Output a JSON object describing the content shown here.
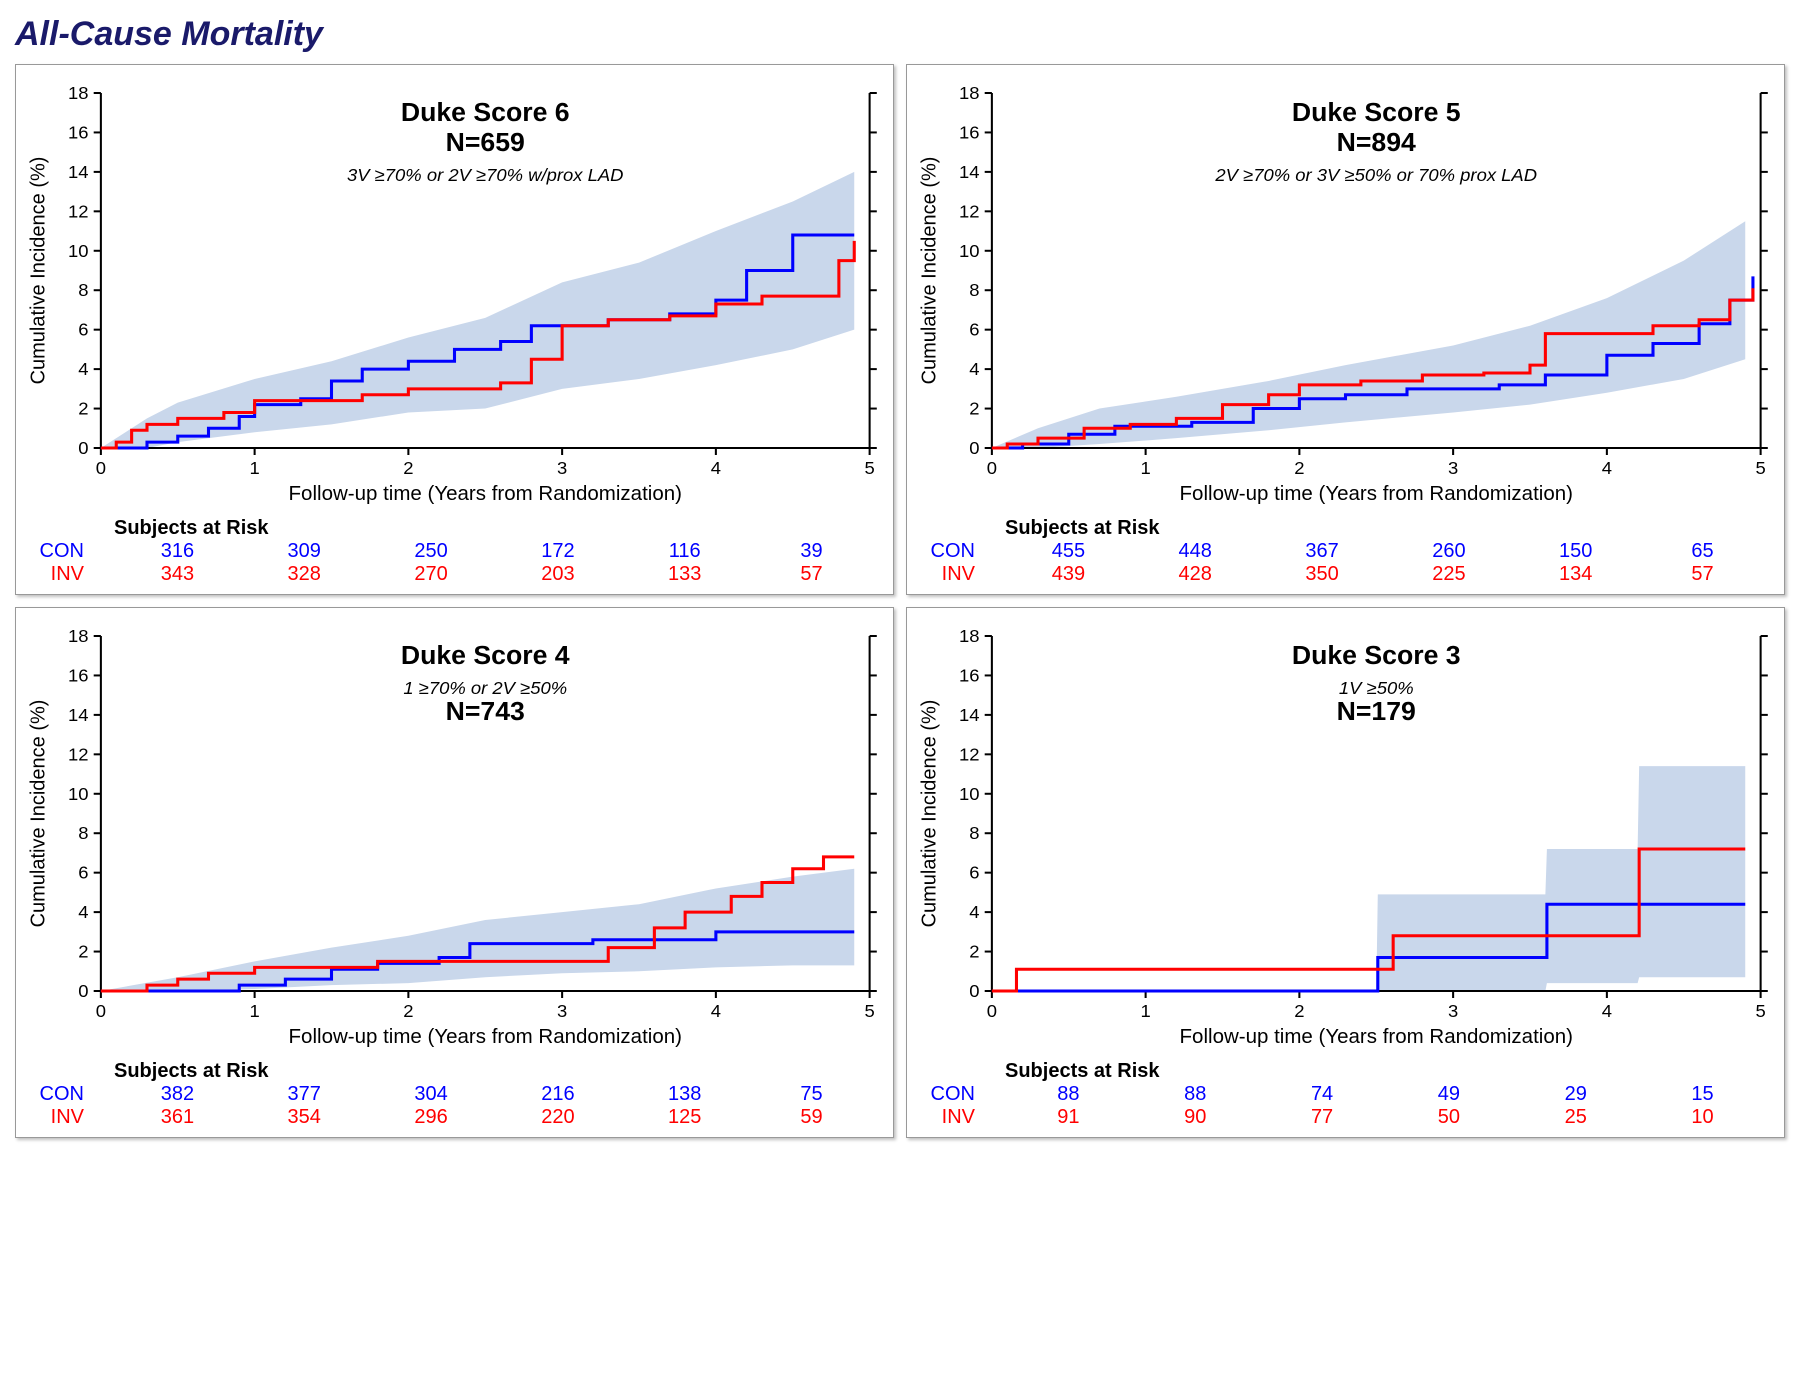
{
  "title": "All-Cause Mortality",
  "colors": {
    "con": "#0000ff",
    "inv": "#ff0000",
    "axis": "#000000",
    "ci_fill": "#c9d7eb",
    "text": "#000000"
  },
  "axis": {
    "xlabel": "Follow-up time (Years from Randomization)",
    "ylabel": "Cumulative Incidence (%)",
    "xmin": 0,
    "xmax": 5,
    "xtick_step": 1,
    "ymin": 0,
    "ymax": 18,
    "ytick_step": 2,
    "label_fontsize": 20,
    "tick_fontsize": 18
  },
  "risk_header": "Subjects at Risk",
  "groups": [
    "CON",
    "INV"
  ],
  "panels": [
    {
      "id": "p6",
      "title": "Duke Score 6",
      "n": "N=659",
      "sub": "3V ≥70% or 2V ≥70% w/prox LAD",
      "ci_band": [
        {
          "x": 0.0,
          "lo": 0,
          "hi": 0
        },
        {
          "x": 0.3,
          "lo": 0,
          "hi": 1.5
        },
        {
          "x": 0.5,
          "lo": 0.3,
          "hi": 2.3
        },
        {
          "x": 1.0,
          "lo": 0.8,
          "hi": 3.5
        },
        {
          "x": 1.5,
          "lo": 1.2,
          "hi": 4.4
        },
        {
          "x": 2.0,
          "lo": 1.8,
          "hi": 5.6
        },
        {
          "x": 2.5,
          "lo": 2.0,
          "hi": 6.6
        },
        {
          "x": 3.0,
          "lo": 3.0,
          "hi": 8.4
        },
        {
          "x": 3.5,
          "lo": 3.5,
          "hi": 9.4
        },
        {
          "x": 4.0,
          "lo": 4.2,
          "hi": 11.0
        },
        {
          "x": 4.5,
          "lo": 5.0,
          "hi": 12.5
        },
        {
          "x": 4.9,
          "lo": 6.0,
          "hi": 14.0
        }
      ],
      "series": {
        "CON": [
          {
            "x": 0.0,
            "y": 0
          },
          {
            "x": 0.3,
            "y": 0.3
          },
          {
            "x": 0.5,
            "y": 0.6
          },
          {
            "x": 0.7,
            "y": 1.0
          },
          {
            "x": 0.9,
            "y": 1.6
          },
          {
            "x": 1.0,
            "y": 2.2
          },
          {
            "x": 1.3,
            "y": 2.5
          },
          {
            "x": 1.5,
            "y": 3.4
          },
          {
            "x": 1.7,
            "y": 4.0
          },
          {
            "x": 2.0,
            "y": 4.4
          },
          {
            "x": 2.3,
            "y": 5.0
          },
          {
            "x": 2.6,
            "y": 5.4
          },
          {
            "x": 2.8,
            "y": 6.2
          },
          {
            "x": 3.0,
            "y": 6.2
          },
          {
            "x": 3.3,
            "y": 6.5
          },
          {
            "x": 3.7,
            "y": 6.8
          },
          {
            "x": 4.0,
            "y": 7.5
          },
          {
            "x": 4.2,
            "y": 9.0
          },
          {
            "x": 4.5,
            "y": 10.8
          },
          {
            "x": 4.7,
            "y": 10.8
          },
          {
            "x": 4.9,
            "y": 10.8
          }
        ],
        "INV": [
          {
            "x": 0.0,
            "y": 0
          },
          {
            "x": 0.1,
            "y": 0.3
          },
          {
            "x": 0.2,
            "y": 0.9
          },
          {
            "x": 0.3,
            "y": 1.2
          },
          {
            "x": 0.5,
            "y": 1.5
          },
          {
            "x": 0.8,
            "y": 1.8
          },
          {
            "x": 1.0,
            "y": 2.4
          },
          {
            "x": 1.3,
            "y": 2.4
          },
          {
            "x": 1.7,
            "y": 2.7
          },
          {
            "x": 2.0,
            "y": 3.0
          },
          {
            "x": 2.3,
            "y": 3.0
          },
          {
            "x": 2.6,
            "y": 3.3
          },
          {
            "x": 2.8,
            "y": 4.5
          },
          {
            "x": 3.0,
            "y": 6.2
          },
          {
            "x": 3.3,
            "y": 6.5
          },
          {
            "x": 3.7,
            "y": 6.7
          },
          {
            "x": 4.0,
            "y": 7.3
          },
          {
            "x": 4.3,
            "y": 7.7
          },
          {
            "x": 4.6,
            "y": 7.7
          },
          {
            "x": 4.8,
            "y": 9.5
          },
          {
            "x": 4.9,
            "y": 10.5
          }
        ]
      },
      "risk": {
        "CON": [
          316,
          309,
          250,
          172,
          116,
          39
        ],
        "INV": [
          343,
          328,
          270,
          203,
          133,
          57
        ]
      }
    },
    {
      "id": "p5",
      "title": "Duke Score 5",
      "n": "N=894",
      "sub": "2V ≥70% or 3V ≥50% or 70% prox LAD",
      "ci_band": [
        {
          "x": 0.0,
          "lo": 0,
          "hi": 0
        },
        {
          "x": 0.3,
          "lo": 0,
          "hi": 1.0
        },
        {
          "x": 0.7,
          "lo": 0.2,
          "hi": 2.0
        },
        {
          "x": 1.2,
          "lo": 0.5,
          "hi": 2.6
        },
        {
          "x": 1.8,
          "lo": 0.9,
          "hi": 3.4
        },
        {
          "x": 2.3,
          "lo": 1.3,
          "hi": 4.2
        },
        {
          "x": 3.0,
          "lo": 1.8,
          "hi": 5.2
        },
        {
          "x": 3.5,
          "lo": 2.2,
          "hi": 6.2
        },
        {
          "x": 4.0,
          "lo": 2.8,
          "hi": 7.6
        },
        {
          "x": 4.5,
          "lo": 3.5,
          "hi": 9.5
        },
        {
          "x": 4.9,
          "lo": 4.5,
          "hi": 11.5
        }
      ],
      "series": {
        "CON": [
          {
            "x": 0.0,
            "y": 0
          },
          {
            "x": 0.2,
            "y": 0.2
          },
          {
            "x": 0.5,
            "y": 0.7
          },
          {
            "x": 0.8,
            "y": 1.1
          },
          {
            "x": 1.0,
            "y": 1.1
          },
          {
            "x": 1.3,
            "y": 1.3
          },
          {
            "x": 1.7,
            "y": 2.0
          },
          {
            "x": 2.0,
            "y": 2.5
          },
          {
            "x": 2.3,
            "y": 2.7
          },
          {
            "x": 2.7,
            "y": 3.0
          },
          {
            "x": 3.0,
            "y": 3.0
          },
          {
            "x": 3.3,
            "y": 3.2
          },
          {
            "x": 3.6,
            "y": 3.7
          },
          {
            "x": 4.0,
            "y": 4.7
          },
          {
            "x": 4.3,
            "y": 5.3
          },
          {
            "x": 4.6,
            "y": 6.3
          },
          {
            "x": 4.8,
            "y": 7.5
          },
          {
            "x": 4.95,
            "y": 8.7
          }
        ],
        "INV": [
          {
            "x": 0.0,
            "y": 0
          },
          {
            "x": 0.1,
            "y": 0.2
          },
          {
            "x": 0.3,
            "y": 0.5
          },
          {
            "x": 0.6,
            "y": 1.0
          },
          {
            "x": 0.9,
            "y": 1.2
          },
          {
            "x": 1.2,
            "y": 1.5
          },
          {
            "x": 1.5,
            "y": 2.2
          },
          {
            "x": 1.8,
            "y": 2.7
          },
          {
            "x": 2.0,
            "y": 3.2
          },
          {
            "x": 2.4,
            "y": 3.4
          },
          {
            "x": 2.8,
            "y": 3.7
          },
          {
            "x": 3.2,
            "y": 3.8
          },
          {
            "x": 3.5,
            "y": 4.2
          },
          {
            "x": 3.6,
            "y": 5.8
          },
          {
            "x": 4.0,
            "y": 5.8
          },
          {
            "x": 4.3,
            "y": 6.2
          },
          {
            "x": 4.6,
            "y": 6.5
          },
          {
            "x": 4.8,
            "y": 7.5
          },
          {
            "x": 4.95,
            "y": 8.1
          }
        ]
      },
      "risk": {
        "CON": [
          455,
          448,
          367,
          260,
          150,
          65
        ],
        "INV": [
          439,
          428,
          350,
          225,
          134,
          57
        ]
      }
    },
    {
      "id": "p4",
      "title": "Duke Score 4",
      "n": "N=743",
      "sub": "1 ≥70% or 2V ≥50%",
      "title_order": [
        "title",
        "sub",
        "n"
      ],
      "ci_band": [
        {
          "x": 0.0,
          "lo": 0,
          "hi": 0
        },
        {
          "x": 0.5,
          "lo": 0,
          "hi": 0.7
        },
        {
          "x": 1.0,
          "lo": 0.1,
          "hi": 1.5
        },
        {
          "x": 1.5,
          "lo": 0.3,
          "hi": 2.2
        },
        {
          "x": 2.0,
          "lo": 0.4,
          "hi": 2.8
        },
        {
          "x": 2.5,
          "lo": 0.7,
          "hi": 3.6
        },
        {
          "x": 3.0,
          "lo": 0.9,
          "hi": 4.0
        },
        {
          "x": 3.5,
          "lo": 1.0,
          "hi": 4.4
        },
        {
          "x": 4.0,
          "lo": 1.2,
          "hi": 5.2
        },
        {
          "x": 4.5,
          "lo": 1.3,
          "hi": 5.8
        },
        {
          "x": 4.9,
          "lo": 1.3,
          "hi": 6.2
        }
      ],
      "series": {
        "CON": [
          {
            "x": 0.0,
            "y": 0
          },
          {
            "x": 0.7,
            "y": 0
          },
          {
            "x": 0.9,
            "y": 0.3
          },
          {
            "x": 1.2,
            "y": 0.6
          },
          {
            "x": 1.5,
            "y": 1.1
          },
          {
            "x": 1.8,
            "y": 1.4
          },
          {
            "x": 2.2,
            "y": 1.7
          },
          {
            "x": 2.4,
            "y": 2.4
          },
          {
            "x": 2.8,
            "y": 2.4
          },
          {
            "x": 3.2,
            "y": 2.6
          },
          {
            "x": 3.7,
            "y": 2.6
          },
          {
            "x": 4.0,
            "y": 3.0
          },
          {
            "x": 4.5,
            "y": 3.0
          },
          {
            "x": 4.9,
            "y": 3.0
          }
        ],
        "INV": [
          {
            "x": 0.0,
            "y": 0
          },
          {
            "x": 0.3,
            "y": 0.3
          },
          {
            "x": 0.5,
            "y": 0.6
          },
          {
            "x": 0.7,
            "y": 0.9
          },
          {
            "x": 1.0,
            "y": 1.2
          },
          {
            "x": 1.4,
            "y": 1.2
          },
          {
            "x": 1.8,
            "y": 1.5
          },
          {
            "x": 2.2,
            "y": 1.5
          },
          {
            "x": 2.6,
            "y": 1.5
          },
          {
            "x": 3.0,
            "y": 1.5
          },
          {
            "x": 3.3,
            "y": 2.2
          },
          {
            "x": 3.6,
            "y": 3.2
          },
          {
            "x": 3.8,
            "y": 4.0
          },
          {
            "x": 4.1,
            "y": 4.8
          },
          {
            "x": 4.3,
            "y": 5.5
          },
          {
            "x": 4.5,
            "y": 6.2
          },
          {
            "x": 4.7,
            "y": 6.8
          },
          {
            "x": 4.9,
            "y": 6.8
          }
        ]
      },
      "risk": {
        "CON": [
          382,
          377,
          304,
          216,
          138,
          75
        ],
        "INV": [
          361,
          354,
          296,
          220,
          125,
          59
        ]
      }
    },
    {
      "id": "p3",
      "title": "Duke Score 3",
      "n": "N=179",
      "sub": "1V ≥50%",
      "title_order": [
        "title",
        "sub",
        "n"
      ],
      "ci_band": [
        {
          "x": 0.0,
          "lo": 0,
          "hi": 0
        },
        {
          "x": 0.2,
          "lo": 0,
          "hi": 0
        },
        {
          "x": 2.5,
          "lo": 0,
          "hi": 0
        },
        {
          "x": 2.51,
          "lo": 0,
          "hi": 4.9
        },
        {
          "x": 3.6,
          "lo": 0,
          "hi": 4.9
        },
        {
          "x": 3.61,
          "lo": 0.4,
          "hi": 7.2
        },
        {
          "x": 4.2,
          "lo": 0.4,
          "hi": 7.2
        },
        {
          "x": 4.21,
          "lo": 0.7,
          "hi": 11.4
        },
        {
          "x": 4.9,
          "lo": 0.7,
          "hi": 11.4
        }
      ],
      "series": {
        "CON": [
          {
            "x": 0.0,
            "y": 0
          },
          {
            "x": 2.5,
            "y": 0
          },
          {
            "x": 2.51,
            "y": 1.7
          },
          {
            "x": 3.6,
            "y": 1.7
          },
          {
            "x": 3.61,
            "y": 4.4
          },
          {
            "x": 4.9,
            "y": 4.4
          }
        ],
        "INV": [
          {
            "x": 0.0,
            "y": 0
          },
          {
            "x": 0.15,
            "y": 0
          },
          {
            "x": 0.16,
            "y": 1.1
          },
          {
            "x": 2.6,
            "y": 1.1
          },
          {
            "x": 2.61,
            "y": 2.8
          },
          {
            "x": 4.2,
            "y": 2.8
          },
          {
            "x": 4.21,
            "y": 7.2
          },
          {
            "x": 4.9,
            "y": 7.2
          }
        ]
      },
      "risk": {
        "CON": [
          88,
          88,
          74,
          49,
          29,
          15
        ],
        "INV": [
          91,
          90,
          77,
          50,
          25,
          10
        ]
      }
    }
  ]
}
